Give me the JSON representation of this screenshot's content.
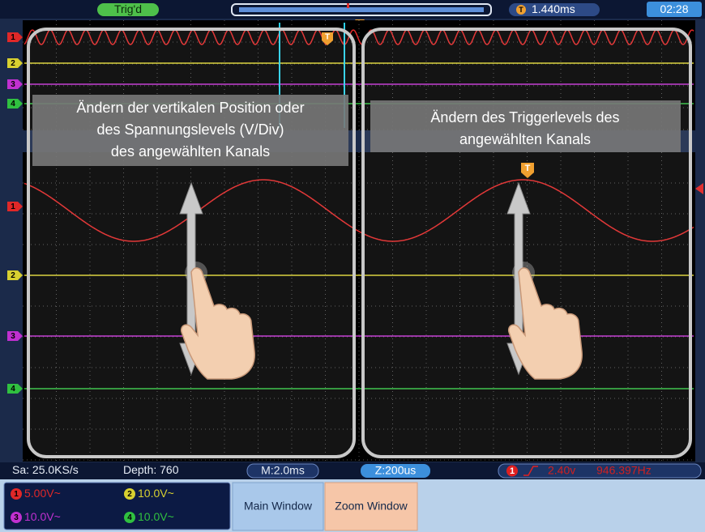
{
  "status_bar": {
    "trigger_state": "Trig'd",
    "trigger_marker": "T",
    "time_offset": "1.440ms",
    "clock": "02:28"
  },
  "channels": [
    {
      "number": "1",
      "scale": "5.00V~"
    },
    {
      "number": "2",
      "scale": "10.0V~"
    },
    {
      "number": "3",
      "scale": "10.0V~"
    },
    {
      "number": "4",
      "scale": "10.0V~"
    }
  ],
  "overlays": [
    {
      "text_lines": [
        "Ändern der vertikalen Position oder",
        "des Spannungslevels (V/Div)",
        "des angewählten Kanals"
      ]
    },
    {
      "text_lines": [
        "Ändern des Triggerlevels des",
        "angewählten Kanals"
      ]
    }
  ],
  "info_bar": {
    "sample_rate": "Sa: 25.0KS/s",
    "depth": "Depth: 760",
    "main_timebase": "M:2.0ms",
    "zoom_timebase": "Z:200us",
    "trigger_channel": "1",
    "trigger_level": "2.40v",
    "frequency": "946.397Hz"
  },
  "buttons": [
    "Main Window",
    "Zoom Window"
  ]
}
